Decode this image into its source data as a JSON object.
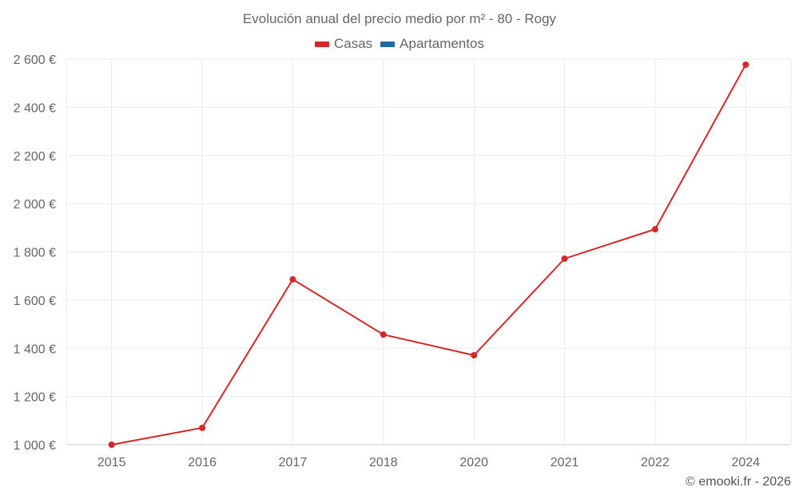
{
  "title": "Evolución anual del precio medio por m² - 80 - Rogy",
  "legend": [
    {
      "label": "Casas",
      "color": "#d62728"
    },
    {
      "label": "Apartamentos",
      "color": "#1f6aa5"
    }
  ],
  "credit": "© emooki.fr - 2026",
  "chart_data": {
    "type": "line",
    "title": "Evolución anual del precio medio por m² - 80 - Rogy",
    "xlabel": "",
    "ylabel": "",
    "categories": [
      "2015",
      "2016",
      "2017",
      "2018",
      "2020",
      "2021",
      "2022",
      "2024"
    ],
    "series": [
      {
        "name": "Casas",
        "color": "#d62728",
        "values": [
          1000,
          1070,
          1686,
          1457,
          1371,
          1772,
          1894,
          2577
        ]
      },
      {
        "name": "Apartamentos",
        "color": "#1f6aa5",
        "values": []
      }
    ],
    "yticks": [
      "1 000 €",
      "1 200 €",
      "1 400 €",
      "1 600 €",
      "1 800 €",
      "2 000 €",
      "2 200 €",
      "2 400 €",
      "2 600 €"
    ],
    "ylim": [
      1000,
      2600
    ],
    "grid": true,
    "legend_position": "top"
  }
}
